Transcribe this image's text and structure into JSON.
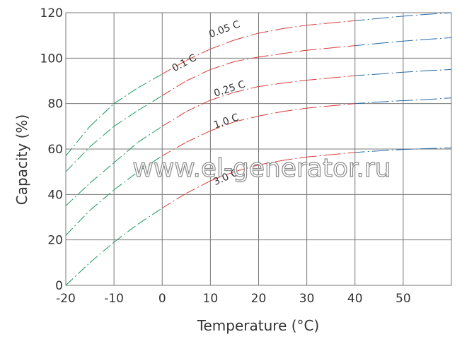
{
  "chart_data": {
    "type": "line",
    "xlabel": "Temperature (°C)",
    "ylabel": "Capacity (%)",
    "xlim": [
      -20,
      60
    ],
    "ylim": [
      0,
      120
    ],
    "xticks": [
      -20,
      -10,
      0,
      10,
      20,
      30,
      40,
      50
    ],
    "yticks": [
      0,
      20,
      40,
      60,
      80,
      100,
      120
    ],
    "grid": true,
    "line_style": "dash-dot",
    "segment_colors": {
      "low_temp": "#1a9a5c",
      "mid_temp": "#d93a3a",
      "high_temp": "#2a6aa8"
    },
    "series": [
      {
        "name": "0.05 C",
        "x": [
          -20,
          -15,
          -10,
          -5,
          0,
          5,
          10,
          15,
          20,
          25,
          30,
          35,
          40,
          45,
          50,
          55,
          60
        ],
        "y": [
          57,
          70,
          80,
          87,
          93,
          99,
          104,
          108,
          111,
          113,
          114.5,
          115.5,
          116.5,
          117.5,
          118.5,
          119.3,
          120
        ]
      },
      {
        "name": "0.1 C",
        "x": [
          -20,
          -15,
          -10,
          -5,
          0,
          5,
          10,
          15,
          20,
          25,
          30,
          35,
          40,
          45,
          50,
          55,
          60
        ],
        "y": [
          50,
          61,
          70,
          77,
          83.5,
          90,
          95,
          98.5,
          100.5,
          102,
          103.5,
          104.5,
          105.5,
          106.5,
          107.5,
          108.3,
          109
        ]
      },
      {
        "name": "0.25 C",
        "x": [
          -20,
          -15,
          -10,
          -5,
          0,
          5,
          10,
          15,
          20,
          25,
          30,
          35,
          40,
          45,
          50,
          55,
          60
        ],
        "y": [
          35,
          45,
          54,
          63,
          70,
          76.5,
          81.5,
          85,
          87.5,
          89,
          90.3,
          91.3,
          92.3,
          93,
          93.8,
          94.5,
          95
        ]
      },
      {
        "name": "1.0 C",
        "x": [
          -20,
          -15,
          -10,
          -5,
          0,
          5,
          10,
          15,
          20,
          25,
          30,
          35,
          40,
          45,
          50,
          55,
          60
        ],
        "y": [
          22,
          33,
          42,
          50,
          57,
          63,
          68,
          72,
          74.5,
          76.5,
          78,
          79,
          80,
          80.7,
          81.3,
          81.8,
          82.5
        ]
      },
      {
        "name": "3.0 C",
        "x": [
          -20,
          -15,
          -10,
          -5,
          0,
          5,
          10,
          15,
          20,
          25,
          30,
          35,
          40,
          45,
          50,
          55,
          60
        ],
        "y": [
          0,
          10,
          19,
          27,
          34,
          40.5,
          46,
          50,
          53,
          55,
          56.5,
          57.5,
          58.5,
          59.2,
          59.8,
          60.2,
          60.5
        ]
      }
    ],
    "annotations": [
      {
        "text": "0.05 C",
        "x": 10,
        "y": 109,
        "angle": -20
      },
      {
        "text": "0.1 C",
        "x": 2.5,
        "y": 94,
        "angle": -28
      },
      {
        "text": "0.25 C",
        "x": 11,
        "y": 83,
        "angle": -18
      },
      {
        "text": "1.0 C",
        "x": 11,
        "y": 69,
        "angle": -20
      },
      {
        "text": "3.0 C",
        "x": 11,
        "y": 44,
        "angle": -24
      }
    ]
  },
  "watermark": "www.el-generator.ru"
}
